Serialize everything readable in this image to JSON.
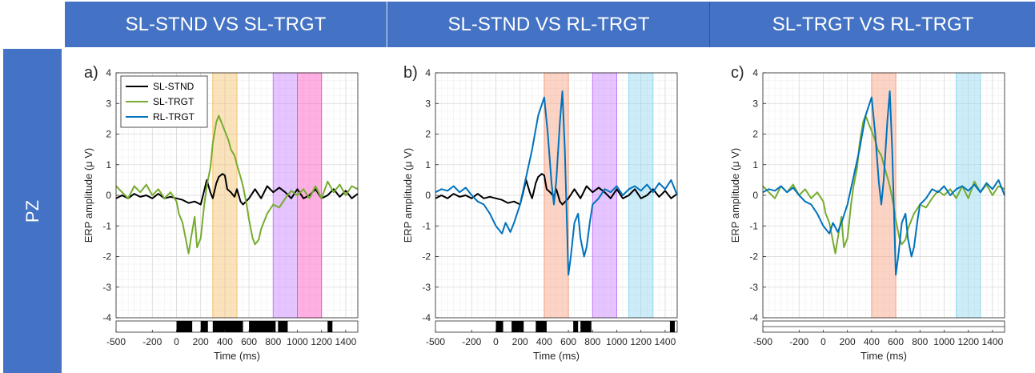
{
  "header": {
    "col1": "SL-STND VS SL-TRGT",
    "col2": "SL-STND VS RL-TRGT",
    "col3": "SL-TRGT VS RL-TRGT"
  },
  "row_label": "PZ",
  "colors": {
    "header_bg": "#4472c4",
    "sl_stnd": "#000000",
    "sl_trgt": "#77ac30",
    "rl_trgt": "#0072bd"
  },
  "chart_data": [
    {
      "type": "line",
      "panel_label": "a)",
      "xlabel": "Time (ms)",
      "ylabel": "ERP amplitude (μ V)",
      "xlim": [
        -500,
        1500
      ],
      "ylim": [
        -4,
        4
      ],
      "xticks": [
        -500,
        -200,
        0,
        200,
        400,
        600,
        800,
        1000,
        1200,
        1400
      ],
      "yticks": [
        -4,
        -3,
        -2,
        -1,
        0,
        1,
        2,
        3,
        4
      ],
      "grid": true,
      "legend": {
        "placement": "top-left",
        "entries": [
          "SL-STND",
          "SL-TRGT",
          "RL-TRGT"
        ]
      },
      "shaded": [
        {
          "x0": 300,
          "x1": 500,
          "color": "#f5c26b"
        },
        {
          "x0": 800,
          "x1": 1000,
          "color": "#c77dff"
        },
        {
          "x0": 1000,
          "x1": 1200,
          "color": "#ff4fc1"
        }
      ],
      "significance": [
        [
          0,
          130
        ],
        [
          200,
          260
        ],
        [
          300,
          550
        ],
        [
          600,
          820
        ],
        [
          840,
          920
        ],
        [
          1250,
          1290
        ]
      ],
      "series": [
        {
          "name": "SL-STND",
          "color": "#000000",
          "x": [
            -500,
            -450,
            -400,
            -350,
            -300,
            -250,
            -200,
            -150,
            -100,
            -50,
            0,
            50,
            100,
            150,
            200,
            220,
            250,
            280,
            300,
            330,
            350,
            380,
            400,
            420,
            450,
            480,
            500,
            530,
            550,
            600,
            650,
            700,
            750,
            800,
            850,
            900,
            950,
            1000,
            1050,
            1100,
            1150,
            1200,
            1250,
            1300,
            1350,
            1400,
            1450,
            1500
          ],
          "values": [
            -0.1,
            0.0,
            -0.1,
            0.05,
            -0.05,
            0.0,
            -0.1,
            0.05,
            -0.1,
            -0.05,
            -0.1,
            -0.15,
            -0.25,
            -0.2,
            -0.3,
            0.0,
            0.5,
            0.1,
            -0.1,
            0.4,
            0.6,
            0.7,
            0.65,
            0.2,
            0.1,
            -0.05,
            0.2,
            -0.2,
            -0.3,
            -0.1,
            0.2,
            -0.1,
            0.3,
            0.1,
            0.25,
            0.1,
            -0.1,
            0.2,
            -0.1,
            0.0,
            0.2,
            -0.1,
            0.0,
            0.2,
            -0.05,
            0.15,
            -0.1,
            0.05
          ]
        },
        {
          "name": "SL-TRGT",
          "color": "#77ac30",
          "x": [
            -500,
            -450,
            -400,
            -350,
            -300,
            -250,
            -200,
            -150,
            -100,
            -50,
            0,
            20,
            50,
            80,
            100,
            120,
            150,
            170,
            200,
            230,
            250,
            280,
            300,
            330,
            350,
            370,
            400,
            430,
            450,
            480,
            500,
            530,
            550,
            580,
            600,
            630,
            650,
            680,
            700,
            750,
            800,
            850,
            900,
            950,
            1000,
            1050,
            1100,
            1150,
            1200,
            1250,
            1300,
            1350,
            1400,
            1450,
            1500
          ],
          "values": [
            0.3,
            0.1,
            -0.1,
            0.3,
            0.1,
            0.35,
            0.0,
            0.2,
            -0.1,
            0.1,
            -0.2,
            -0.6,
            -0.9,
            -1.5,
            -1.9,
            -1.4,
            -0.7,
            -1.7,
            -1.4,
            -0.3,
            0.3,
            0.9,
            1.7,
            2.4,
            2.6,
            2.4,
            2.1,
            1.8,
            1.5,
            1.3,
            1.0,
            0.6,
            0.3,
            -0.3,
            -0.8,
            -1.4,
            -1.6,
            -1.45,
            -1.1,
            -0.6,
            -0.3,
            -0.4,
            -0.1,
            0.15,
            0.0,
            0.2,
            -0.1,
            0.3,
            -0.1,
            0.45,
            0.1,
            0.35,
            0.0,
            0.3,
            0.2
          ]
        }
      ]
    },
    {
      "type": "line",
      "panel_label": "b)",
      "xlabel": "Time (ms)",
      "ylabel": "ERP amplitude (μ V)",
      "xlim": [
        -500,
        1500
      ],
      "ylim": [
        -4,
        4
      ],
      "xticks": [
        -500,
        -200,
        0,
        200,
        400,
        600,
        800,
        1000,
        1200,
        1400
      ],
      "yticks": [
        -4,
        -3,
        -2,
        -1,
        0,
        1,
        2,
        3,
        4
      ],
      "grid": true,
      "shaded": [
        {
          "x0": 400,
          "x1": 600,
          "color": "#f7a07f"
        },
        {
          "x0": 800,
          "x1": 1000,
          "color": "#c77dff"
        },
        {
          "x0": 1100,
          "x1": 1300,
          "color": "#8fd6f0"
        }
      ],
      "significance": [
        [
          0,
          60
        ],
        [
          130,
          230
        ],
        [
          330,
          420
        ],
        [
          640,
          680
        ],
        [
          700,
          790
        ],
        [
          1440,
          1480
        ]
      ],
      "series": [
        {
          "name": "SL-STND",
          "color": "#000000",
          "x": [
            -500,
            -450,
            -400,
            -350,
            -300,
            -250,
            -200,
            -150,
            -100,
            -50,
            0,
            50,
            100,
            150,
            200,
            220,
            250,
            280,
            300,
            330,
            350,
            380,
            400,
            420,
            450,
            480,
            500,
            530,
            550,
            600,
            650,
            700,
            750,
            800,
            850,
            900,
            950,
            1000,
            1050,
            1100,
            1150,
            1200,
            1250,
            1300,
            1350,
            1400,
            1450,
            1500
          ],
          "values": [
            -0.1,
            0.0,
            -0.1,
            0.05,
            -0.05,
            0.0,
            -0.1,
            0.05,
            -0.1,
            -0.05,
            -0.1,
            -0.15,
            -0.25,
            -0.2,
            -0.3,
            0.0,
            0.5,
            0.1,
            -0.1,
            0.4,
            0.6,
            0.7,
            0.65,
            0.2,
            0.1,
            -0.05,
            0.2,
            -0.2,
            -0.3,
            -0.1,
            0.2,
            -0.1,
            0.3,
            0.1,
            0.25,
            0.1,
            -0.1,
            0.2,
            -0.1,
            0.0,
            0.2,
            -0.1,
            0.0,
            0.2,
            -0.05,
            0.15,
            -0.1,
            0.05
          ]
        },
        {
          "name": "RL-TRGT",
          "color": "#0072bd",
          "x": [
            -500,
            -450,
            -400,
            -350,
            -300,
            -250,
            -200,
            -150,
            -100,
            -50,
            0,
            50,
            80,
            120,
            150,
            200,
            250,
            300,
            350,
            400,
            430,
            460,
            480,
            500,
            530,
            550,
            570,
            600,
            620,
            650,
            680,
            700,
            730,
            750,
            780,
            800,
            850,
            900,
            950,
            1000,
            1050,
            1100,
            1150,
            1200,
            1250,
            1300,
            1350,
            1400,
            1450,
            1500
          ],
          "values": [
            0.1,
            0.2,
            0.15,
            0.3,
            0.1,
            0.25,
            0.0,
            -0.2,
            -0.3,
            -0.6,
            -1.0,
            -1.25,
            -0.9,
            -1.2,
            -0.9,
            -0.3,
            0.6,
            1.5,
            2.6,
            3.2,
            2.0,
            0.4,
            -0.3,
            0.5,
            2.4,
            3.4,
            1.5,
            -2.6,
            -2.0,
            -0.9,
            -0.6,
            -1.4,
            -2.0,
            -1.7,
            -0.8,
            -0.3,
            -0.1,
            0.2,
            0.1,
            0.3,
            0.0,
            0.2,
            0.3,
            0.15,
            0.35,
            0.1,
            0.4,
            0.2,
            0.5,
            0.0
          ]
        }
      ]
    },
    {
      "type": "line",
      "panel_label": "c)",
      "xlabel": "Time (ms)",
      "ylabel": "ERP amplitude (μ V)",
      "xlim": [
        -500,
        1500
      ],
      "ylim": [
        -4,
        4
      ],
      "xticks": [
        -500,
        -200,
        0,
        200,
        400,
        600,
        800,
        1000,
        1200,
        1400
      ],
      "yticks": [
        -4,
        -3,
        -2,
        -1,
        0,
        1,
        2,
        3,
        4
      ],
      "grid": true,
      "shaded": [
        {
          "x0": 400,
          "x1": 600,
          "color": "#f7a07f"
        },
        {
          "x0": 1100,
          "x1": 1300,
          "color": "#8fd6f0"
        }
      ],
      "significance": [],
      "series": [
        {
          "name": "SL-TRGT",
          "color": "#77ac30",
          "x": [
            -500,
            -450,
            -400,
            -350,
            -300,
            -250,
            -200,
            -150,
            -100,
            -50,
            0,
            20,
            50,
            80,
            100,
            120,
            150,
            170,
            200,
            230,
            250,
            280,
            300,
            330,
            350,
            370,
            400,
            430,
            450,
            480,
            500,
            530,
            550,
            580,
            600,
            630,
            650,
            680,
            700,
            750,
            800,
            850,
            900,
            950,
            1000,
            1050,
            1100,
            1150,
            1200,
            1250,
            1300,
            1350,
            1400,
            1450,
            1500
          ],
          "values": [
            0.3,
            0.1,
            -0.1,
            0.3,
            0.1,
            0.35,
            0.0,
            0.2,
            -0.1,
            0.1,
            -0.2,
            -0.6,
            -0.9,
            -1.5,
            -1.9,
            -1.4,
            -0.7,
            -1.7,
            -1.4,
            -0.3,
            0.3,
            0.9,
            1.7,
            2.4,
            2.6,
            2.4,
            2.1,
            1.8,
            1.5,
            1.3,
            1.0,
            0.6,
            0.3,
            -0.3,
            -0.8,
            -1.4,
            -1.6,
            -1.45,
            -1.1,
            -0.6,
            -0.3,
            -0.4,
            -0.1,
            0.15,
            0.0,
            0.2,
            -0.1,
            0.3,
            -0.1,
            0.45,
            0.1,
            0.35,
            0.0,
            0.3,
            0.2
          ]
        },
        {
          "name": "RL-TRGT",
          "color": "#0072bd",
          "x": [
            -500,
            -450,
            -400,
            -350,
            -300,
            -250,
            -200,
            -150,
            -100,
            -50,
            0,
            50,
            80,
            120,
            150,
            200,
            250,
            300,
            350,
            400,
            430,
            460,
            480,
            500,
            530,
            550,
            570,
            600,
            620,
            650,
            680,
            700,
            730,
            750,
            780,
            800,
            850,
            900,
            950,
            1000,
            1050,
            1100,
            1150,
            1200,
            1250,
            1300,
            1350,
            1400,
            1450,
            1500
          ],
          "values": [
            0.1,
            0.2,
            0.15,
            0.3,
            0.1,
            0.25,
            0.0,
            -0.2,
            -0.3,
            -0.6,
            -1.0,
            -1.25,
            -0.9,
            -1.2,
            -0.9,
            -0.3,
            0.6,
            1.5,
            2.6,
            3.2,
            2.0,
            0.4,
            -0.3,
            0.5,
            2.4,
            3.4,
            1.5,
            -2.6,
            -2.0,
            -0.9,
            -0.6,
            -1.4,
            -2.0,
            -1.7,
            -0.8,
            -0.3,
            -0.1,
            0.2,
            0.1,
            0.3,
            0.0,
            0.2,
            0.3,
            0.15,
            0.35,
            0.1,
            0.4,
            0.2,
            0.5,
            0.0
          ]
        }
      ]
    }
  ]
}
